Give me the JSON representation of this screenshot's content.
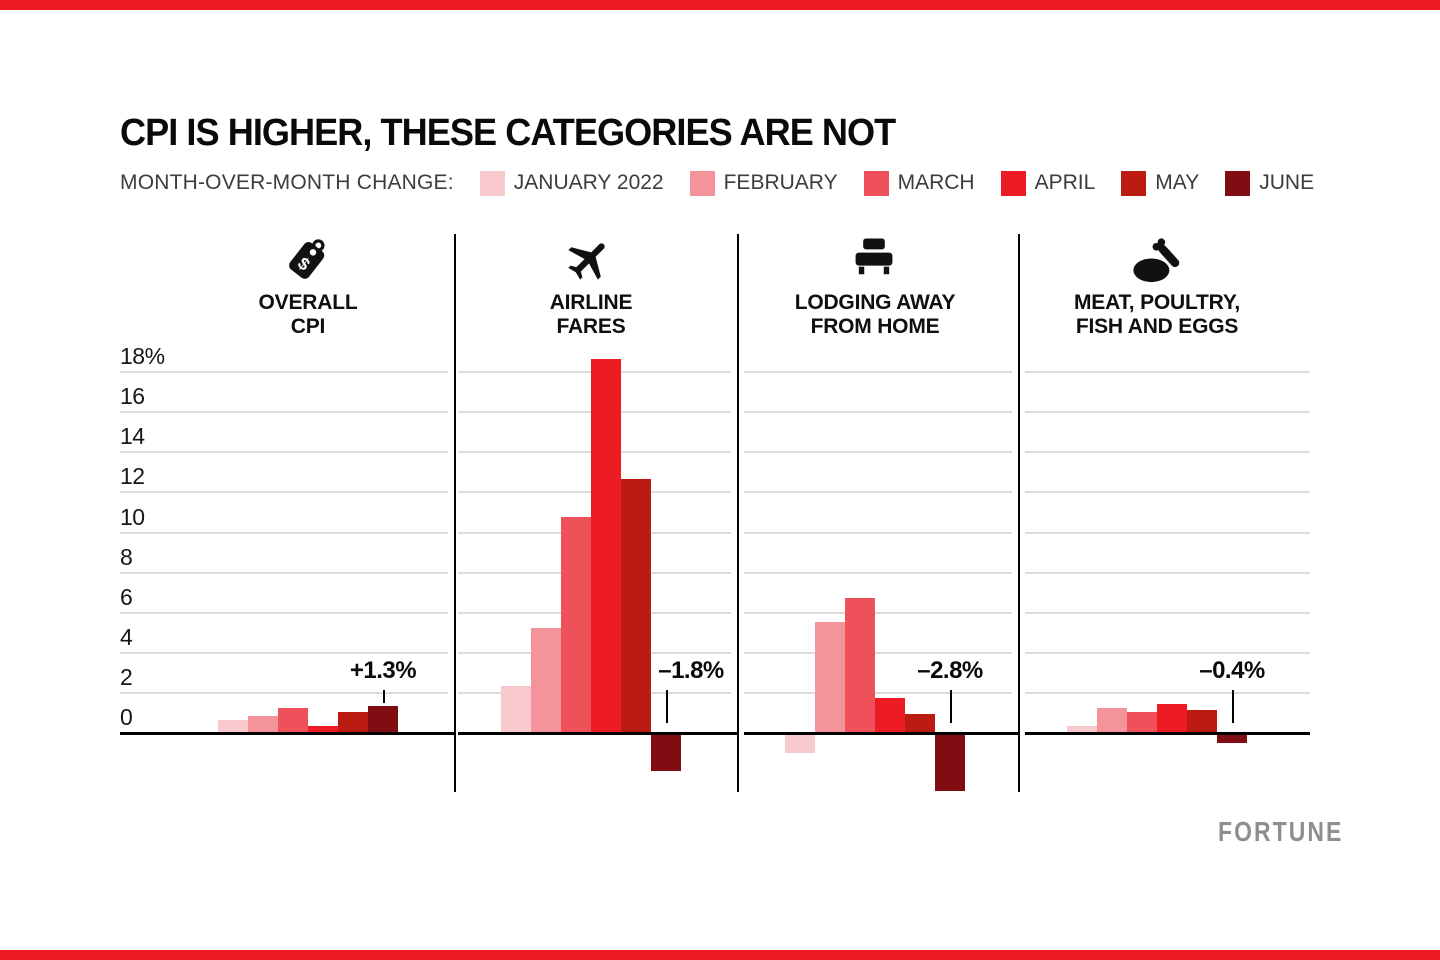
{
  "page": {
    "background_color": "#ffffff",
    "edge_bar_color": "#ed1c24"
  },
  "header": {
    "title": "CPI IS HIGHER, THESE CATEGORIES ARE NOT",
    "legend_caption": "MONTH-OVER-MONTH CHANGE:"
  },
  "legend": {
    "items": [
      {
        "label": "JANUARY 2022",
        "color": "#f8c9cd"
      },
      {
        "label": "FEBRUARY",
        "color": "#f4939a"
      },
      {
        "label": "MARCH",
        "color": "#ef515a"
      },
      {
        "label": "APRIL",
        "color": "#ed1c24"
      },
      {
        "label": "MAY",
        "color": "#bb1b10"
      },
      {
        "label": "JUNE",
        "color": "#800d11"
      }
    ]
  },
  "chart_data": {
    "type": "bar",
    "title": "CPI IS HIGHER, THESE CATEGORIES ARE NOT",
    "subtitle": "MONTH-OVER-MONTH CHANGE:",
    "unit": "percent, month-over-month change",
    "categories": [
      "JANUARY 2022",
      "FEBRUARY",
      "MARCH",
      "APRIL",
      "MAY",
      "JUNE"
    ],
    "series_colors": [
      "#f8c9cd",
      "#f4939a",
      "#ef515a",
      "#ed1c24",
      "#bb1b10",
      "#800d11"
    ],
    "ylim": [
      -3.5,
      19
    ],
    "yticks": [
      18,
      16,
      14,
      12,
      10,
      8,
      6,
      4,
      2,
      0
    ],
    "ytick_labels": [
      "18%",
      "16",
      "14",
      "12",
      "10",
      "8",
      "6",
      "4",
      "2",
      "0"
    ],
    "grid": true,
    "legend_position": "top",
    "panels": [
      {
        "icon": "price-tag",
        "label_lines": [
          "OVERALL",
          "CPI"
        ],
        "values": [
          0.6,
          0.8,
          1.2,
          0.3,
          1.0,
          1.3
        ],
        "annotation": "+1.3%",
        "annotation_value": 1.3,
        "annotation_offset_x": 0
      },
      {
        "icon": "airplane",
        "label_lines": [
          "AIRLINE",
          "FARES"
        ],
        "values": [
          2.3,
          5.2,
          10.7,
          18.6,
          12.6,
          -1.8
        ],
        "annotation": "–1.8%",
        "annotation_value": -1.8,
        "annotation_offset_x": 25
      },
      {
        "icon": "bed",
        "label_lines": [
          "LODGING AWAY",
          "FROM HOME"
        ],
        "values": [
          -0.9,
          5.5,
          6.7,
          1.7,
          0.9,
          -2.8
        ],
        "annotation": "–2.8%",
        "annotation_value": -2.8,
        "annotation_offset_x": 0
      },
      {
        "icon": "poultry",
        "label_lines": [
          "MEAT, POULTRY,",
          "FISH AND EGGS"
        ],
        "values": [
          0.3,
          1.2,
          1.0,
          1.4,
          1.1,
          -0.4
        ],
        "annotation": "–0.4%",
        "annotation_value": -0.4,
        "annotation_offset_x": 0
      }
    ]
  },
  "footer": {
    "brand": "FORTUNE"
  }
}
